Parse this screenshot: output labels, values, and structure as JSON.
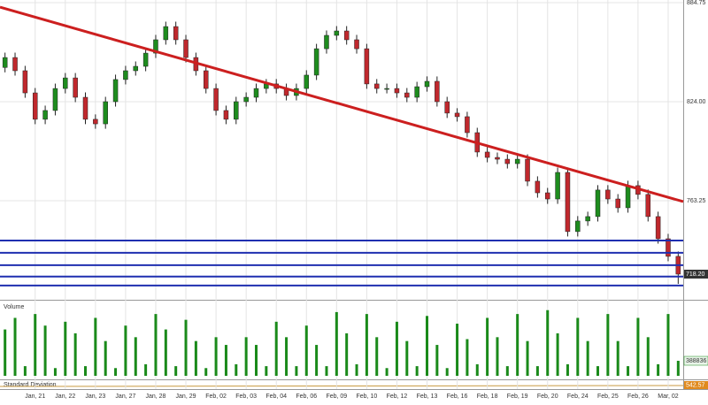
{
  "chart_data": {
    "type": "candlestick",
    "panel_labels": {
      "volume": "Volume",
      "std_dev": "Standard Deviation"
    },
    "std_dev_label": "542.57",
    "last_price_label": "718.20",
    "categories": [
      null,
      null,
      null,
      "Jan, 21",
      null,
      null,
      "Jan, 22",
      null,
      null,
      "Jan, 23",
      null,
      null,
      "Jan, 27",
      null,
      null,
      "Jan, 28",
      null,
      null,
      "Jan, 29",
      null,
      null,
      "Feb, 02",
      null,
      null,
      "Feb, 03",
      null,
      null,
      "Feb, 04",
      null,
      null,
      "Feb, 06",
      null,
      null,
      "Feb, 09",
      null,
      null,
      "Feb, 10",
      null,
      null,
      "Feb, 12",
      null,
      null,
      "Feb, 13",
      null,
      null,
      "Feb, 16",
      null,
      null,
      "Feb, 18",
      null,
      null,
      "Feb, 19",
      null,
      null,
      "Feb, 20",
      null,
      null,
      "Feb, 24",
      null,
      null,
      "Feb, 25",
      null,
      null,
      "Feb, 26",
      null,
      null,
      "Mar, 02",
      null
    ],
    "open": [
      845.0,
      851.1,
      843.0,
      829.4,
      813.2,
      818.6,
      832.1,
      838.6,
      826.7,
      813.2,
      810.4,
      824.0,
      837.6,
      843.0,
      845.7,
      853.8,
      862.0,
      870.1,
      862.0,
      851.1,
      843.0,
      832.1,
      818.6,
      813.2,
      824.0,
      826.7,
      832.1,
      834.9,
      832.1,
      827.8,
      832.1,
      840.3,
      856.5,
      864.7,
      867.4,
      862.0,
      856.5,
      834.9,
      832.1,
      832.1,
      829.4,
      826.7,
      833.2,
      836.5,
      824.0,
      817.0,
      814.8,
      805.0,
      793.1,
      789.8,
      788.7,
      786.0,
      788.7,
      775.2,
      768.1,
      764.3,
      780.6,
      744.3,
      750.8,
      753.5,
      769.8,
      764.3,
      758.9,
      772.5,
      767.1,
      753.5,
      739.9,
      729.1
    ],
    "high": [
      854.1,
      854.1,
      846.0,
      832.4,
      821.6,
      835.1,
      841.6,
      841.6,
      829.7,
      816.2,
      827.0,
      840.6,
      846.0,
      848.7,
      856.8,
      865.0,
      873.1,
      873.1,
      865.0,
      854.1,
      846.0,
      835.1,
      821.6,
      827.0,
      829.7,
      835.1,
      837.9,
      837.9,
      835.1,
      835.1,
      843.3,
      859.5,
      867.7,
      870.4,
      870.4,
      865.0,
      859.5,
      837.9,
      835.1,
      835.1,
      832.4,
      836.2,
      839.5,
      839.5,
      827.0,
      820.0,
      817.8,
      808.0,
      796.1,
      792.8,
      791.7,
      791.7,
      791.7,
      778.2,
      771.1,
      783.6,
      783.6,
      753.8,
      756.5,
      772.8,
      772.8,
      767.3,
      775.5,
      775.5,
      770.1,
      756.5,
      742.9,
      732.1
    ],
    "low": [
      842.0,
      840.0,
      826.4,
      810.2,
      810.2,
      815.6,
      829.1,
      823.7,
      810.2,
      807.4,
      807.4,
      821.0,
      834.6,
      840.0,
      842.7,
      850.8,
      859.0,
      859.0,
      848.1,
      840.0,
      829.1,
      815.6,
      810.2,
      810.2,
      821.0,
      823.7,
      829.1,
      829.1,
      824.8,
      824.8,
      829.1,
      837.3,
      853.5,
      861.7,
      859.0,
      853.5,
      831.9,
      829.1,
      829.1,
      826.4,
      823.7,
      823.7,
      830.2,
      821.0,
      814.0,
      811.8,
      802.0,
      790.1,
      786.8,
      785.7,
      783.0,
      783.0,
      772.2,
      765.1,
      761.3,
      761.3,
      741.3,
      741.3,
      747.8,
      750.5,
      761.3,
      755.9,
      755.9,
      764.1,
      750.5,
      736.9,
      726.1,
      712.2
    ],
    "close": [
      851.1,
      843.0,
      829.4,
      813.2,
      818.6,
      832.1,
      838.6,
      826.7,
      813.2,
      810.4,
      824.0,
      837.6,
      843.0,
      845.7,
      853.8,
      862.0,
      870.1,
      862.0,
      851.1,
      843.0,
      832.1,
      818.6,
      813.2,
      824.0,
      826.7,
      832.1,
      834.9,
      832.1,
      827.8,
      832.1,
      840.3,
      856.5,
      864.7,
      867.4,
      862.0,
      856.5,
      834.9,
      832.1,
      832.1,
      829.4,
      826.7,
      833.2,
      836.5,
      824.0,
      817.0,
      814.8,
      805.0,
      793.1,
      789.8,
      788.7,
      786.0,
      788.7,
      775.2,
      768.1,
      764.3,
      780.6,
      744.3,
      750.8,
      753.5,
      769.8,
      764.3,
      758.9,
      772.5,
      767.1,
      753.5,
      739.9,
      729.1,
      718.2
    ],
    "up_color": "#1e8c1e",
    "down_color": "#c0282d",
    "volume": [
      1200000,
      1500000,
      250000,
      1600000,
      1300000,
      200000,
      1400000,
      1100000,
      250000,
      1500000,
      900000,
      200000,
      1300000,
      1000000,
      300000,
      1600000,
      1200000,
      250000,
      1450000,
      900000,
      200000,
      1000000,
      800000,
      300000,
      1000000,
      800000,
      250000,
      1400000,
      1000000,
      250000,
      1300000,
      800000,
      250000,
      1650000,
      1100000,
      300000,
      1600000,
      1000000,
      200000,
      1400000,
      900000,
      250000,
      1550000,
      800000,
      200000,
      1350000,
      950000,
      300000,
      1500000,
      1000000,
      250000,
      1600000,
      900000,
      250000,
      1700000,
      1100000,
      300000,
      1500000,
      900000,
      250000,
      1600000,
      900000,
      250000,
      1500000,
      1000000,
      300000,
      1600000,
      388836
    ],
    "volume_color": "#1a8a1a",
    "ylim": [
      703.0,
      886.4
    ],
    "yticks": [
      763.25,
      {
        "value": 824.0,
        "label": "824.00"
      },
      884.75
    ],
    "volume_ylim": [
      0,
      1900000
    ],
    "trendline": {
      "x": [
        0,
        68
      ],
      "y": [
        882.0,
        762.7
      ],
      "color": "#cc1f1f"
    },
    "hlines": {
      "values": [
        738.8,
        731.3,
        723.7,
        716.7,
        711.2
      ],
      "color": "#1f2fb0"
    },
    "grid": true
  }
}
